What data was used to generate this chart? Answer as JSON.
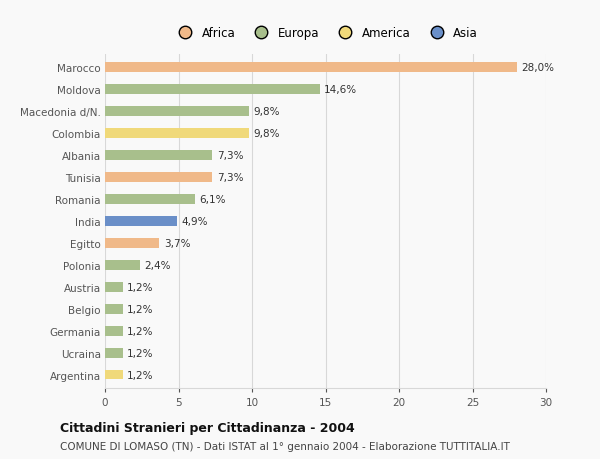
{
  "categories": [
    "Marocco",
    "Moldova",
    "Macedonia d/N.",
    "Colombia",
    "Albania",
    "Tunisia",
    "Romania",
    "India",
    "Egitto",
    "Polonia",
    "Austria",
    "Belgio",
    "Germania",
    "Ucraina",
    "Argentina"
  ],
  "values": [
    28.0,
    14.6,
    9.8,
    9.8,
    7.3,
    7.3,
    6.1,
    4.9,
    3.7,
    2.4,
    1.2,
    1.2,
    1.2,
    1.2,
    1.2
  ],
  "labels": [
    "28,0%",
    "14,6%",
    "9,8%",
    "9,8%",
    "7,3%",
    "7,3%",
    "6,1%",
    "4,9%",
    "3,7%",
    "2,4%",
    "1,2%",
    "1,2%",
    "1,2%",
    "1,2%",
    "1,2%"
  ],
  "colors": [
    "#f0b989",
    "#a8bf8c",
    "#a8bf8c",
    "#f0d97a",
    "#a8bf8c",
    "#f0b989",
    "#a8bf8c",
    "#6a8fc8",
    "#f0b989",
    "#a8bf8c",
    "#a8bf8c",
    "#a8bf8c",
    "#a8bf8c",
    "#a8bf8c",
    "#f0d97a"
  ],
  "legend_labels": [
    "Africa",
    "Europa",
    "America",
    "Asia"
  ],
  "legend_colors": [
    "#f0b989",
    "#a8bf8c",
    "#f0d97a",
    "#6a8fc8"
  ],
  "xlim": [
    0,
    30
  ],
  "xticks": [
    0,
    5,
    10,
    15,
    20,
    25,
    30
  ],
  "title": "Cittadini Stranieri per Cittadinanza - 2004",
  "subtitle": "COMUNE DI LOMASO (TN) - Dati ISTAT al 1° gennaio 2004 - Elaborazione TUTTITALIA.IT",
  "background_color": "#f9f9f9",
  "grid_color": "#d8d8d8",
  "bar_height": 0.45,
  "label_fontsize": 7.5,
  "ytick_fontsize": 7.5,
  "xtick_fontsize": 7.5,
  "legend_fontsize": 8.5,
  "title_fontsize": 9.0,
  "subtitle_fontsize": 7.5
}
